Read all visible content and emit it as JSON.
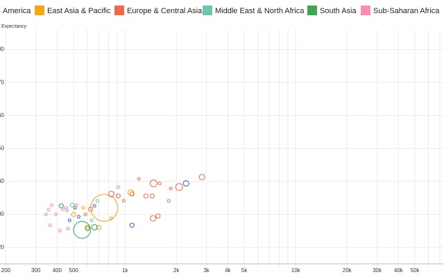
{
  "chart_data": {
    "type": "scatter",
    "y_label": "Expectancy",
    "xlog": true,
    "grid": true,
    "xlim": [
      185,
      74000
    ],
    "ylim": [
      15,
      86
    ],
    "xticks": [
      200,
      300,
      400,
      500,
      {
        "value": 1000,
        "label": "1k"
      },
      {
        "value": 2000,
        "label": "2k"
      },
      {
        "value": 3000,
        "label": "3k"
      },
      {
        "value": 4000,
        "label": "4k"
      },
      {
        "value": 5000,
        "label": "5k"
      },
      {
        "value": 10000,
        "label": "10k"
      },
      {
        "value": 20000,
        "label": "20k"
      },
      {
        "value": 30000,
        "label": "30k"
      },
      {
        "value": 40000,
        "label": "40k"
      },
      {
        "value": 50000,
        "label": "50k"
      }
    ],
    "xminor": [
      600,
      700,
      800,
      900,
      6000,
      7000,
      8000,
      9000,
      60000,
      70000
    ],
    "yticks": [
      20,
      30,
      40,
      50,
      60,
      70,
      80
    ],
    "series": [
      {
        "name": "America",
        "color": "#3b5fc9",
        "x": [
          2280,
          1099,
          509,
          662,
          535,
          473
        ],
        "values": [
          39.4,
          26.7,
          32,
          32.6,
          29.3,
          28.2
        ],
        "sizes": [
          16,
          9,
          4,
          4,
          4,
          4
        ]
      },
      {
        "name": "East Asia & Pacific",
        "color": "#f0a818",
        "x": [
          755,
          701,
          500,
          602,
          1080,
          830,
          570
        ],
        "values": [
          32,
          26,
          30,
          26.1,
          36.6,
          28.8,
          32
        ],
        "sizes": [
          380,
          9,
          9,
          9,
          16,
          4,
          4
        ]
      },
      {
        "name": "Europe & Central Asia",
        "color": "#f06a4a",
        "x": [
          2826,
          2075,
          1469,
          1459,
          1560,
          1803,
          830,
          1205,
          1325,
          1442,
          1597,
          1853,
          912,
          982,
          627,
          586,
          1099
        ],
        "values": [
          41.3,
          38.3,
          39.4,
          28.8,
          29.5,
          34.1,
          36.2,
          40.8,
          35.6,
          35.6,
          39.4,
          37.9,
          35.6,
          34.1,
          31.6,
          30,
          36.2
        ],
        "sizes": [
          16,
          25,
          25,
          16,
          9,
          4,
          16,
          4,
          9,
          9,
          4,
          4,
          9,
          4,
          9,
          4,
          9
        ]
      },
      {
        "name": "Middle East & North Africa",
        "color": "#6cc5b0",
        "x": [
          491,
          456,
          638,
          689,
          912
        ],
        "values": [
          32.8,
          31.2,
          28.2,
          34.1,
          38.3
        ],
        "sizes": [
          9,
          4,
          4,
          4,
          4
        ]
      },
      {
        "name": "South Asia",
        "color": "#3ca653",
        "x": [
          560,
          662,
          602,
          423
        ],
        "values": [
          25.3,
          26.1,
          25.7,
          32.6
        ],
        "sizes": [
          150,
          16,
          9,
          9
        ]
      },
      {
        "name": "Sub-Saharan Africa",
        "color": "#f78fb3",
        "x": [
          357,
          364,
          393,
          415,
          431,
          344,
          464,
          520,
          452,
          371
        ],
        "values": [
          31.4,
          26.7,
          30,
          25.1,
          31.6,
          30,
          25.7,
          32.8,
          32,
          32.8
        ],
        "sizes": [
          4,
          4,
          4,
          4,
          4,
          4,
          4,
          4,
          4,
          4
        ]
      }
    ]
  }
}
